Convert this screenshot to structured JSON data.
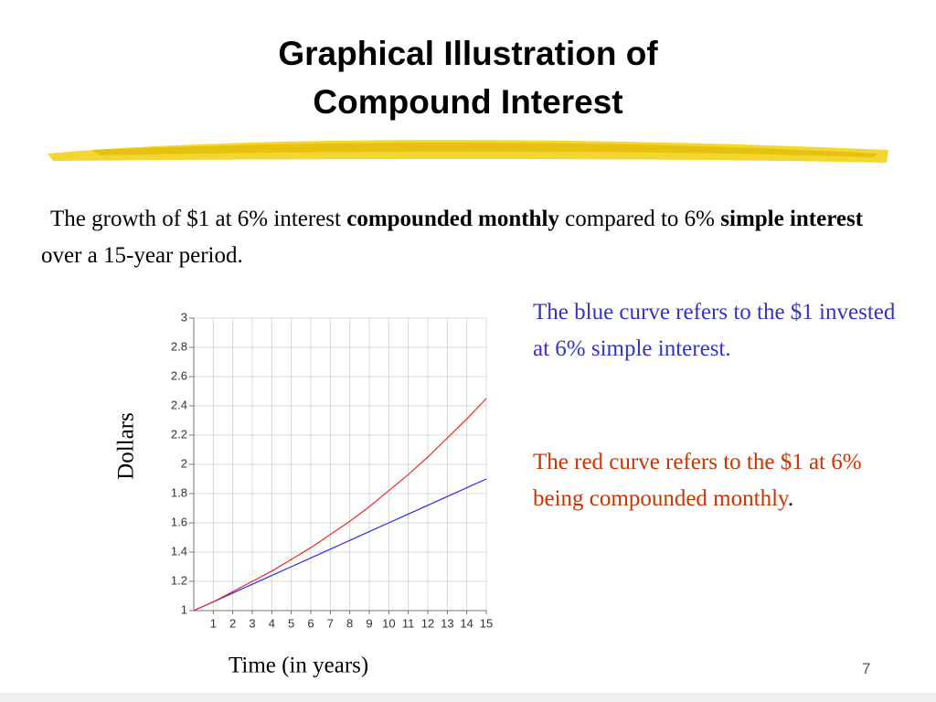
{
  "title_lines": [
    "Graphical Illustration of",
    "Compound Interest"
  ],
  "intro": [
    "The growth of $1 at 6% interest ",
    "compounded monthly",
    " compared to 6% ",
    "simple interest",
    " over a 15-year period."
  ],
  "note_blue": "The blue curve refers to the $1 invested at 6% simple interest.",
  "note_red": [
    "The red curve refers to the $1 at 6% being compounded monthly",
    "."
  ],
  "page_number": "7",
  "chart_data": {
    "type": "line",
    "x_label": "Time (in years)",
    "y_label": "Dollars",
    "x": [
      0,
      1,
      2,
      3,
      4,
      5,
      6,
      7,
      8,
      9,
      10,
      11,
      12,
      13,
      14,
      15
    ],
    "series": [
      {
        "color": "#2a2aee",
        "values": [
          1,
          1.06,
          1.12,
          1.18,
          1.24,
          1.3,
          1.36,
          1.42,
          1.48,
          1.54,
          1.6,
          1.66,
          1.72,
          1.78,
          1.84,
          1.9
        ]
      },
      {
        "color": "#ee2a2a",
        "values": [
          1,
          1.06,
          1.13,
          1.2,
          1.27,
          1.35,
          1.43,
          1.52,
          1.61,
          1.71,
          1.82,
          1.93,
          2.05,
          2.18,
          2.31,
          2.45
        ]
      }
    ],
    "xlim": [
      0,
      15
    ],
    "xticks": [
      1,
      2,
      3,
      4,
      5,
      6,
      7,
      8,
      9,
      10,
      11,
      12,
      13,
      14,
      15
    ],
    "ylim": [
      1,
      3
    ],
    "yticks": [
      1,
      1.2,
      1.4,
      1.6,
      1.8,
      2,
      2.2,
      2.4,
      2.6,
      2.8,
      3
    ],
    "grid": true
  }
}
